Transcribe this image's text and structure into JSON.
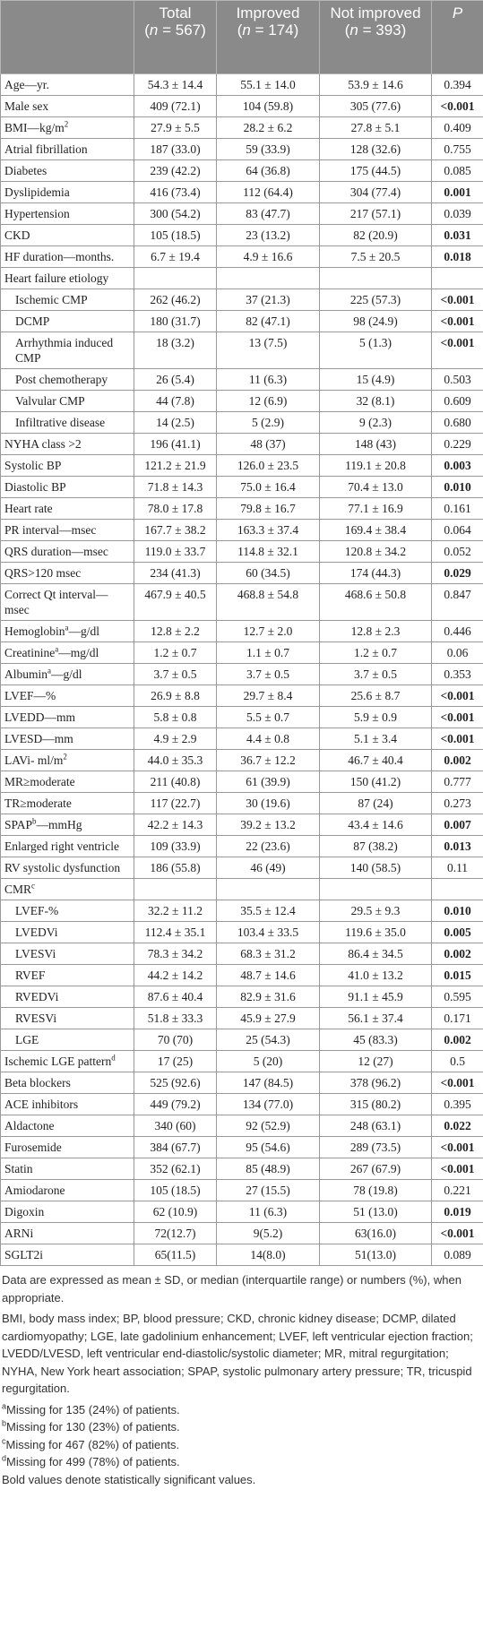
{
  "table": {
    "header": [
      {
        "label": ""
      },
      {
        "name": "Total",
        "open": "(",
        "var": "n",
        "rest": " = 567)"
      },
      {
        "name": "Improved",
        "open": "(",
        "var": "n",
        "rest": " = 174)"
      },
      {
        "name": "Not improved",
        "open": "(",
        "var": "n",
        "rest": " = 393)"
      },
      {
        "label": "P"
      }
    ],
    "rows": [
      {
        "label": "Age—yr.",
        "cells": [
          "54.3 ± 14.4",
          "55.1 ± 14.0",
          "53.9 ± 14.6",
          "0.394"
        ]
      },
      {
        "label": "Male sex",
        "cells": [
          "409 (72.1)",
          "104 (59.8)",
          "305 (77.6)",
          "<0.001"
        ],
        "bold": true
      },
      {
        "label": "BMI—kg/m",
        "sup": "2",
        "cells": [
          "27.9 ± 5.5",
          "28.2 ± 6.2",
          "27.8 ± 5.1",
          "0.409"
        ]
      },
      {
        "label": "Atrial fibrillation",
        "cells": [
          "187 (33.0)",
          "59 (33.9)",
          "128 (32.6)",
          "0.755"
        ]
      },
      {
        "label": "Diabetes",
        "cells": [
          "239 (42.2)",
          "64 (36.8)",
          "175 (44.5)",
          "0.085"
        ]
      },
      {
        "label": "Dyslipidemia",
        "cells": [
          "416 (73.4)",
          "112 (64.4)",
          "304 (77.4)",
          "0.001"
        ],
        "bold": true
      },
      {
        "label": "Hypertension",
        "cells": [
          "300 (54.2)",
          "83 (47.7)",
          "217 (57.1)",
          "0.039"
        ]
      },
      {
        "label": "CKD",
        "cells": [
          "105 (18.5)",
          "23 (13.2)",
          "82 (20.9)",
          "0.031"
        ],
        "bold": true
      },
      {
        "label": "HF duration—months.",
        "cells": [
          "6.7 ± 19.4",
          "4.9 ± 16.6",
          "7.5 ± 20.5",
          "0.018"
        ],
        "bold": true
      },
      {
        "label": "Heart failure etiology"
      },
      {
        "label": "Ischemic CMP",
        "indent": true,
        "cells": [
          "262 (46.2)",
          "37 (21.3)",
          "225 (57.3)",
          "<0.001"
        ],
        "bold": true
      },
      {
        "label": "DCMP",
        "indent": true,
        "cells": [
          "180 (31.7)",
          "82 (47.1)",
          "98 (24.9)",
          "<0.001"
        ],
        "bold": true
      },
      {
        "label": "Arrhythmia induced CMP",
        "indent": true,
        "cells": [
          "18 (3.2)",
          "13 (7.5)",
          "5 (1.3)",
          "<0.001"
        ],
        "bold": true
      },
      {
        "label": "Post chemotherapy",
        "indent": true,
        "cells": [
          "26 (5.4)",
          "11 (6.3)",
          "15 (4.9)",
          "0.503"
        ]
      },
      {
        "label": "Valvular CMP",
        "indent": true,
        "cells": [
          "44 (7.8)",
          "12 (6.9)",
          "32 (8.1)",
          "0.609"
        ]
      },
      {
        "label": "Infiltrative disease",
        "indent": true,
        "cells": [
          "14 (2.5)",
          "5 (2.9)",
          "9 (2.3)",
          "0.680"
        ]
      },
      {
        "label": "NYHA class >2",
        "cells": [
          "196 (41.1)",
          "48 (37)",
          "148 (43)",
          "0.229"
        ]
      },
      {
        "label": "Systolic BP",
        "cells": [
          "121.2 ± 21.9",
          "126.0 ± 23.5",
          "119.1 ± 20.8",
          "0.003"
        ],
        "bold": true
      },
      {
        "label": "Diastolic BP",
        "cells": [
          "71.8 ± 14.3",
          "75.0 ± 16.4",
          "70.4 ± 13.0",
          "0.010"
        ],
        "bold": true
      },
      {
        "label": "Heart rate",
        "cells": [
          "78.0 ± 17.8",
          "79.8 ± 16.7",
          "77.1 ± 16.9",
          "0.161"
        ]
      },
      {
        "label": "PR interval—msec",
        "cells": [
          "167.7 ± 38.2",
          "163.3 ± 37.4",
          "169.4 ± 38.4",
          "0.064"
        ]
      },
      {
        "label": "QRS duration—msec",
        "cells": [
          "119.0 ± 33.7",
          "114.8 ± 32.1",
          "120.8 ± 34.2",
          "0.052"
        ]
      },
      {
        "label": "QRS>120 msec",
        "cells": [
          "234 (41.3)",
          "60 (34.5)",
          "174 (44.3)",
          "0.029"
        ],
        "bold": true
      },
      {
        "label": "Correct Qt interval—msec",
        "cells": [
          "467.9 ± 40.5",
          "468.8 ± 54.8",
          "468.6 ± 50.8",
          "0.847"
        ]
      },
      {
        "label": "Hemoglobin",
        "sup": "a",
        "label_end": "—g/dl",
        "cells": [
          "12.8 ± 2.2",
          "12.7 ± 2.0",
          "12.8 ± 2.3",
          "0.446"
        ]
      },
      {
        "label": "Creatinine",
        "sup": "a",
        "label_end": "—mg/dl",
        "cells": [
          "1.2 ± 0.7",
          "1.1 ± 0.7",
          "1.2 ± 0.7",
          "0.06"
        ]
      },
      {
        "label": "Albumin",
        "sup": "a",
        "label_end": "—g/dl",
        "cells": [
          "3.7 ± 0.5",
          "3.7 ± 0.5",
          "3.7 ± 0.5",
          "0.353"
        ]
      },
      {
        "label": "LVEF—%",
        "cells": [
          "26.9 ± 8.8",
          "29.7 ± 8.4",
          "25.6 ± 8.7",
          "<0.001"
        ],
        "bold": true
      },
      {
        "label": "LVEDD—mm",
        "cells": [
          "5.8 ± 0.8",
          "5.5 ± 0.7",
          "5.9 ± 0.9",
          "<0.001"
        ],
        "bold": true
      },
      {
        "label": "LVESD—mm",
        "cells": [
          "4.9 ± 2.9",
          "4.4 ± 0.8",
          "5.1 ± 3.4",
          "<0.001"
        ],
        "bold": true
      },
      {
        "label": "LAVi- ml/m",
        "sup": "2",
        "cells": [
          "44.0 ± 35.3",
          "36.7 ± 12.2",
          "46.7 ± 40.4",
          "0.002"
        ],
        "bold": true
      },
      {
        "label": "MR≥moderate",
        "cells": [
          "211 (40.8)",
          "61 (39.9)",
          "150 (41.2)",
          "0.777"
        ]
      },
      {
        "label": "TR≥moderate",
        "cells": [
          "117 (22.7)",
          "30 (19.6)",
          "87 (24)",
          "0.273"
        ]
      },
      {
        "label": "SPAP",
        "sup": "b",
        "label_end": "—mmHg",
        "cells": [
          "42.2 ± 14.3",
          "39.2 ± 13.2",
          "43.4 ± 14.6",
          "0.007"
        ],
        "bold": true
      },
      {
        "label": "Enlarged right ventricle",
        "cells": [
          "109 (33.9)",
          "22 (23.6)",
          "87 (38.2)",
          "0.013"
        ],
        "bold": true
      },
      {
        "label": "RV systolic dysfunction",
        "cells": [
          "186 (55.8)",
          "46 (49)",
          "140 (58.5)",
          "0.11"
        ]
      },
      {
        "label": "CMR",
        "sup": "c"
      },
      {
        "label": "LVEF-%",
        "indent": true,
        "cells": [
          "32.2 ± 11.2",
          "35.5 ± 12.4",
          "29.5 ± 9.3",
          "0.010"
        ],
        "bold": true
      },
      {
        "label": "LVEDVi",
        "indent": true,
        "cells": [
          "112.4 ± 35.1",
          "103.4 ± 33.5",
          "119.6 ± 35.0",
          "0.005"
        ],
        "bold": true
      },
      {
        "label": "LVESVi",
        "indent": true,
        "cells": [
          "78.3 ± 34.2",
          "68.3 ± 31.2",
          "86.4 ± 34.5",
          "0.002"
        ],
        "bold": true
      },
      {
        "label": "RVEF",
        "indent": true,
        "cells": [
          "44.2 ± 14.2",
          "48.7 ± 14.6",
          "41.0 ± 13.2",
          "0.015"
        ],
        "bold": true
      },
      {
        "label": "RVEDVi",
        "indent": true,
        "cells": [
          "87.6 ± 40.4",
          "82.9 ± 31.6",
          "91.1 ± 45.9",
          "0.595"
        ]
      },
      {
        "label": "RVESVi",
        "indent": true,
        "cells": [
          "51.8 ± 33.3",
          "45.9 ± 27.9",
          "56.1 ± 37.4",
          "0.171"
        ]
      },
      {
        "label": "LGE",
        "indent": true,
        "cells": [
          "70 (70)",
          "25 (54.3)",
          "45 (83.3)",
          "0.002"
        ],
        "bold": true
      },
      {
        "label": "Ischemic LGE pattern",
        "sup": "d",
        "cells": [
          "17 (25)",
          "5 (20)",
          "12 (27)",
          "0.5"
        ]
      },
      {
        "label": "Beta blockers",
        "cells": [
          "525 (92.6)",
          "147 (84.5)",
          "378 (96.2)",
          "<0.001"
        ],
        "bold": true
      },
      {
        "label": "ACE inhibitors",
        "cells": [
          "449 (79.2)",
          "134 (77.0)",
          "315 (80.2)",
          "0.395"
        ]
      },
      {
        "label": "Aldactone",
        "cells": [
          "340 (60)",
          "92 (52.9)",
          "248 (63.1)",
          "0.022"
        ],
        "bold": true
      },
      {
        "label": "Furosemide",
        "cells": [
          "384 (67.7)",
          "95 (54.6)",
          "289 (73.5)",
          "<0.001"
        ],
        "bold": true
      },
      {
        "label": "Statin",
        "cells": [
          "352 (62.1)",
          "85 (48.9)",
          "267 (67.9)",
          "<0.001"
        ],
        "bold": true
      },
      {
        "label": "Amiodarone",
        "cells": [
          "105 (18.5)",
          "27 (15.5)",
          "78 (19.8)",
          "0.221"
        ]
      },
      {
        "label": "Digoxin",
        "cells": [
          "62 (10.9)",
          "11 (6.3)",
          "51 (13.0)",
          "0.019"
        ],
        "bold": true
      },
      {
        "label": "ARNi",
        "cells": [
          "72(12.7)",
          "9(5.2)",
          "63(16.0)",
          "<0.001"
        ],
        "bold": true
      },
      {
        "label": "SGLT2i",
        "cells": [
          "65(11.5)",
          "14(8.0)",
          "51(13.0)",
          "0.089"
        ]
      }
    ]
  },
  "notes": {
    "text": [
      "Data are expressed as mean ± SD, or median (interquartile range) or numbers (%), when appropriate.",
      "BMI, body mass index; BP, blood pressure; CKD, chronic kidney disease; DCMP, dilated cardiomyopathy; LGE, late gadolinium enhancement; LVEF, left ventricular ejection fraction; LVEDD/LVESD, left ventricular end-diastolic/systolic diameter; MR, mitral regurgitation; NYHA, New York heart association; SPAP, systolic pulmonary artery pressure; TR, tricuspid regurgitation."
    ],
    "footnotes": [
      {
        "sup": "a",
        "text": "Missing for 135 (24%) of patients."
      },
      {
        "sup": "b",
        "text": "Missing for 130 (23%) of patients."
      },
      {
        "sup": "c",
        "text": "Missing for 467 (82%) of patients."
      },
      {
        "sup": "d",
        "text": "Missing for 499 (78%) of patients."
      }
    ],
    "closing": "Bold values denote statistically significant values."
  }
}
